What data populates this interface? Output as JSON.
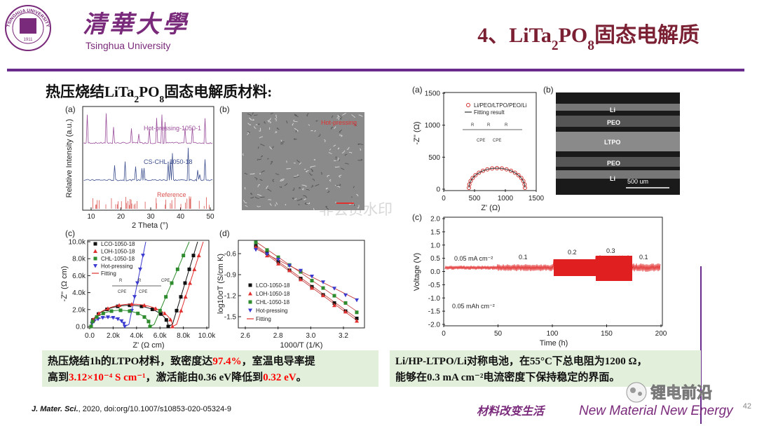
{
  "header": {
    "logo_ring": "TSINGHUA UNIVERSITY",
    "logo_year": "1911",
    "university_cn": "清華大學",
    "university_en": "Tsinghua University",
    "title_parts": [
      {
        "text": "4、LiTa"
      },
      {
        "text": "2",
        "sub": true
      },
      {
        "text": "PO"
      },
      {
        "text": "8",
        "sub": true
      },
      {
        "text": "固态电解质"
      }
    ]
  },
  "subtitle_parts": [
    {
      "text": "热压烧结LiTa"
    },
    {
      "text": "2",
      "sub": true
    },
    {
      "text": "PO"
    },
    {
      "text": "8",
      "sub": true
    },
    {
      "text": "固态电解质材料:"
    }
  ],
  "figures": {
    "left_a": {
      "label": "(a)",
      "ylabel": "Relative Intensity (a.u.)",
      "xlabel": "2 Theta (°)",
      "xticks": [
        "10",
        "20",
        "30",
        "40",
        "50"
      ],
      "traces": [
        {
          "name": "Hot-pressing-1050-1",
          "color": "#9b4f9b"
        },
        {
          "name": "CS-CHL-1050-18",
          "color": "#3d4f8f"
        },
        {
          "name": "Reference",
          "color": "#d9534f"
        }
      ]
    },
    "left_b": {
      "label": "(b)",
      "tag": "Hot-pressing"
    },
    "left_c": {
      "label": "(c)",
      "ylabel": "-Z'' (Ω cm)",
      "xlabel": "Z' (Ω cm)",
      "xticks": [
        "0.0",
        "2.0k",
        "4.0k",
        "6.0k",
        "8.0k",
        "10.0k"
      ],
      "yticks": [
        "0.0",
        "2.0k",
        "4.0k",
        "6.0k",
        "8.0k",
        "10.0k"
      ],
      "legend": [
        {
          "name": "LCO-1050-18",
          "color": "#111111",
          "marker": "square"
        },
        {
          "name": "LOH-1050-18",
          "color": "#e03030",
          "marker": "triangle"
        },
        {
          "name": "CHL-1050-18",
          "color": "#2e8b2e",
          "marker": "square"
        },
        {
          "name": "Hot-pressing",
          "color": "#3a3ad0",
          "marker": "down"
        },
        {
          "name": "Fitting",
          "color": "#e03030",
          "marker": "line"
        }
      ],
      "circuit": [
        "R",
        "R",
        "CPE",
        "CPE",
        "CPE"
      ]
    },
    "left_d": {
      "label": "(d)",
      "ylabel": "log10σT (S/cm K)",
      "xlabel": "1000/T (1/K)",
      "xticks": [
        "2.6",
        "2.8",
        "3.0",
        "3.2"
      ],
      "yticks": [
        "-1.5",
        "-1.2",
        "-0.9",
        "-0.6"
      ],
      "legend": [
        {
          "name": "LCO-1050-18",
          "color": "#111111",
          "marker": "square"
        },
        {
          "name": "LOH-1050-18",
          "color": "#e03030",
          "marker": "triangle"
        },
        {
          "name": "CHL-1050-18",
          "color": "#2e8b2e",
          "marker": "square"
        },
        {
          "name": "Hot-pressing",
          "color": "#3a3ad0",
          "marker": "down"
        },
        {
          "name": "Fitting",
          "color": "#e03030",
          "marker": "line"
        }
      ]
    },
    "right_a": {
      "label": "(a)",
      "ylabel": "-Z'' (Ω)",
      "xlabel": "Z' (Ω)",
      "xticks": [
        "0",
        "500",
        "1000",
        "1500"
      ],
      "yticks": [
        "0",
        "500",
        "1000",
        "1500"
      ],
      "legend": [
        {
          "name": "Li/PEO/LTPO/PEO/Li",
          "color": "#d03030",
          "marker": "circle"
        },
        {
          "name": "Fitting result",
          "color": "#333333",
          "marker": "line"
        }
      ],
      "circuit": [
        "R",
        "R",
        "R",
        "CPE",
        "CPE"
      ]
    },
    "right_b": {
      "label": "(b)",
      "layers": [
        "Li",
        "PEO",
        "LTPO",
        "PEO",
        "Li"
      ],
      "scale": "500 um"
    },
    "right_c": {
      "label": "(c)",
      "ylabel": "Voltage (V)",
      "xlabel": "Time (h)",
      "xticks": [
        "0",
        "50",
        "100",
        "150",
        "200"
      ],
      "yticks": [
        "-2.0",
        "-1.5",
        "-1.0",
        "-0.5",
        "0.0",
        "0.5",
        "1.0",
        "1.5",
        "2.0"
      ],
      "annotations": [
        "0.05 mA cm⁻²",
        "0.1",
        "0.2",
        "0.3",
        "0.1",
        "0.05 mAh cm⁻²"
      ],
      "color": "#e02020"
    }
  },
  "watermark": "非会员水印",
  "text_boxes": [
    {
      "lines": [
        [
          {
            "text": "热压烧结1h的LTPO材料，致密度达"
          },
          {
            "text": "97.4%",
            "color": "#ff0000"
          },
          {
            "text": "，室温电导率提"
          }
        ],
        [
          {
            "text": "高到"
          },
          {
            "text": "3.12×10⁻⁴ S cm⁻¹",
            "color": "#ff0000"
          },
          {
            "text": "，激活能由0.36 eV降低到"
          },
          {
            "text": "0.32 eV",
            "color": "#ff0000"
          },
          {
            "text": "。"
          }
        ]
      ]
    },
    {
      "lines": [
        [
          {
            "text": "Li/HP-LTPO/Li对称电池，在55°C下总电阻为1200 Ω，"
          }
        ],
        [
          {
            "text": "能够在0.3 mA cm⁻²电流密度下保持稳定的界面。"
          }
        ]
      ]
    }
  ],
  "footer": {
    "journal": "J. Mater. Sci.",
    "citation": ", 2020, doi:org/10.1007/s10853-020-05324-9",
    "slogan_cn": "材料改变生活",
    "slogan_en": "New Material New Energy",
    "page": "42",
    "brand": "锂电前沿"
  }
}
